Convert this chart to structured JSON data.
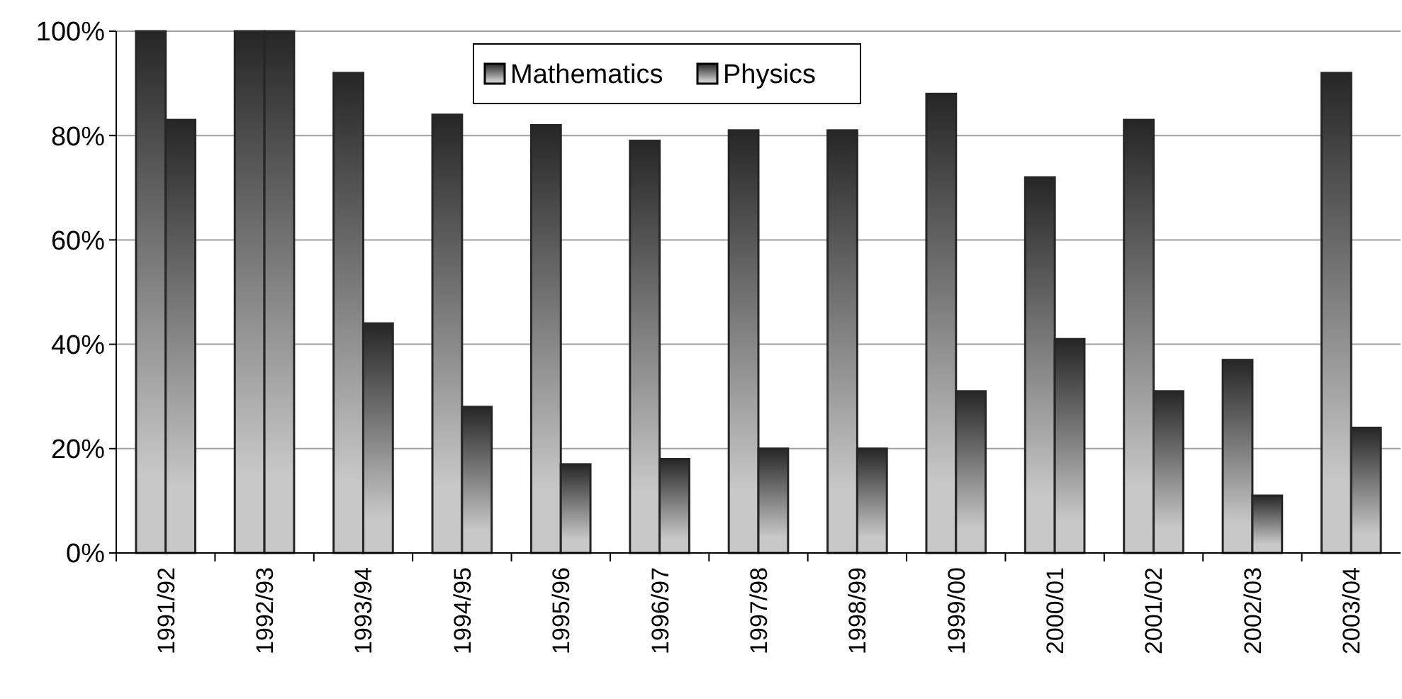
{
  "chart_data": {
    "type": "bar",
    "categories": [
      "1991/92",
      "1992/93",
      "1993/94",
      "1994/95",
      "1995/96",
      "1996/97",
      "1997/98",
      "1998/99",
      "1999/00",
      "2000/01",
      "2001/02",
      "2002/03",
      "2003/04"
    ],
    "series": [
      {
        "name": "Mathematics",
        "color": "#262626",
        "values": [
          100,
          100,
          92,
          84,
          82,
          79,
          81,
          81,
          88,
          72,
          83,
          37,
          92
        ]
      },
      {
        "name": "Physics",
        "color": "#262626",
        "values": [
          83,
          100,
          44,
          28,
          17,
          18,
          20,
          20,
          31,
          41,
          31,
          11,
          24
        ]
      }
    ],
    "ylim": [
      0,
      100
    ],
    "yticks": [
      {
        "value": 0,
        "label": "0%"
      },
      {
        "value": 20,
        "label": "20%"
      },
      {
        "value": 40,
        "label": "40%"
      },
      {
        "value": 60,
        "label": "60%"
      },
      {
        "value": 80,
        "label": "80%"
      },
      {
        "value": 100,
        "label": "100%"
      }
    ],
    "grid": "y",
    "legend": "top"
  }
}
